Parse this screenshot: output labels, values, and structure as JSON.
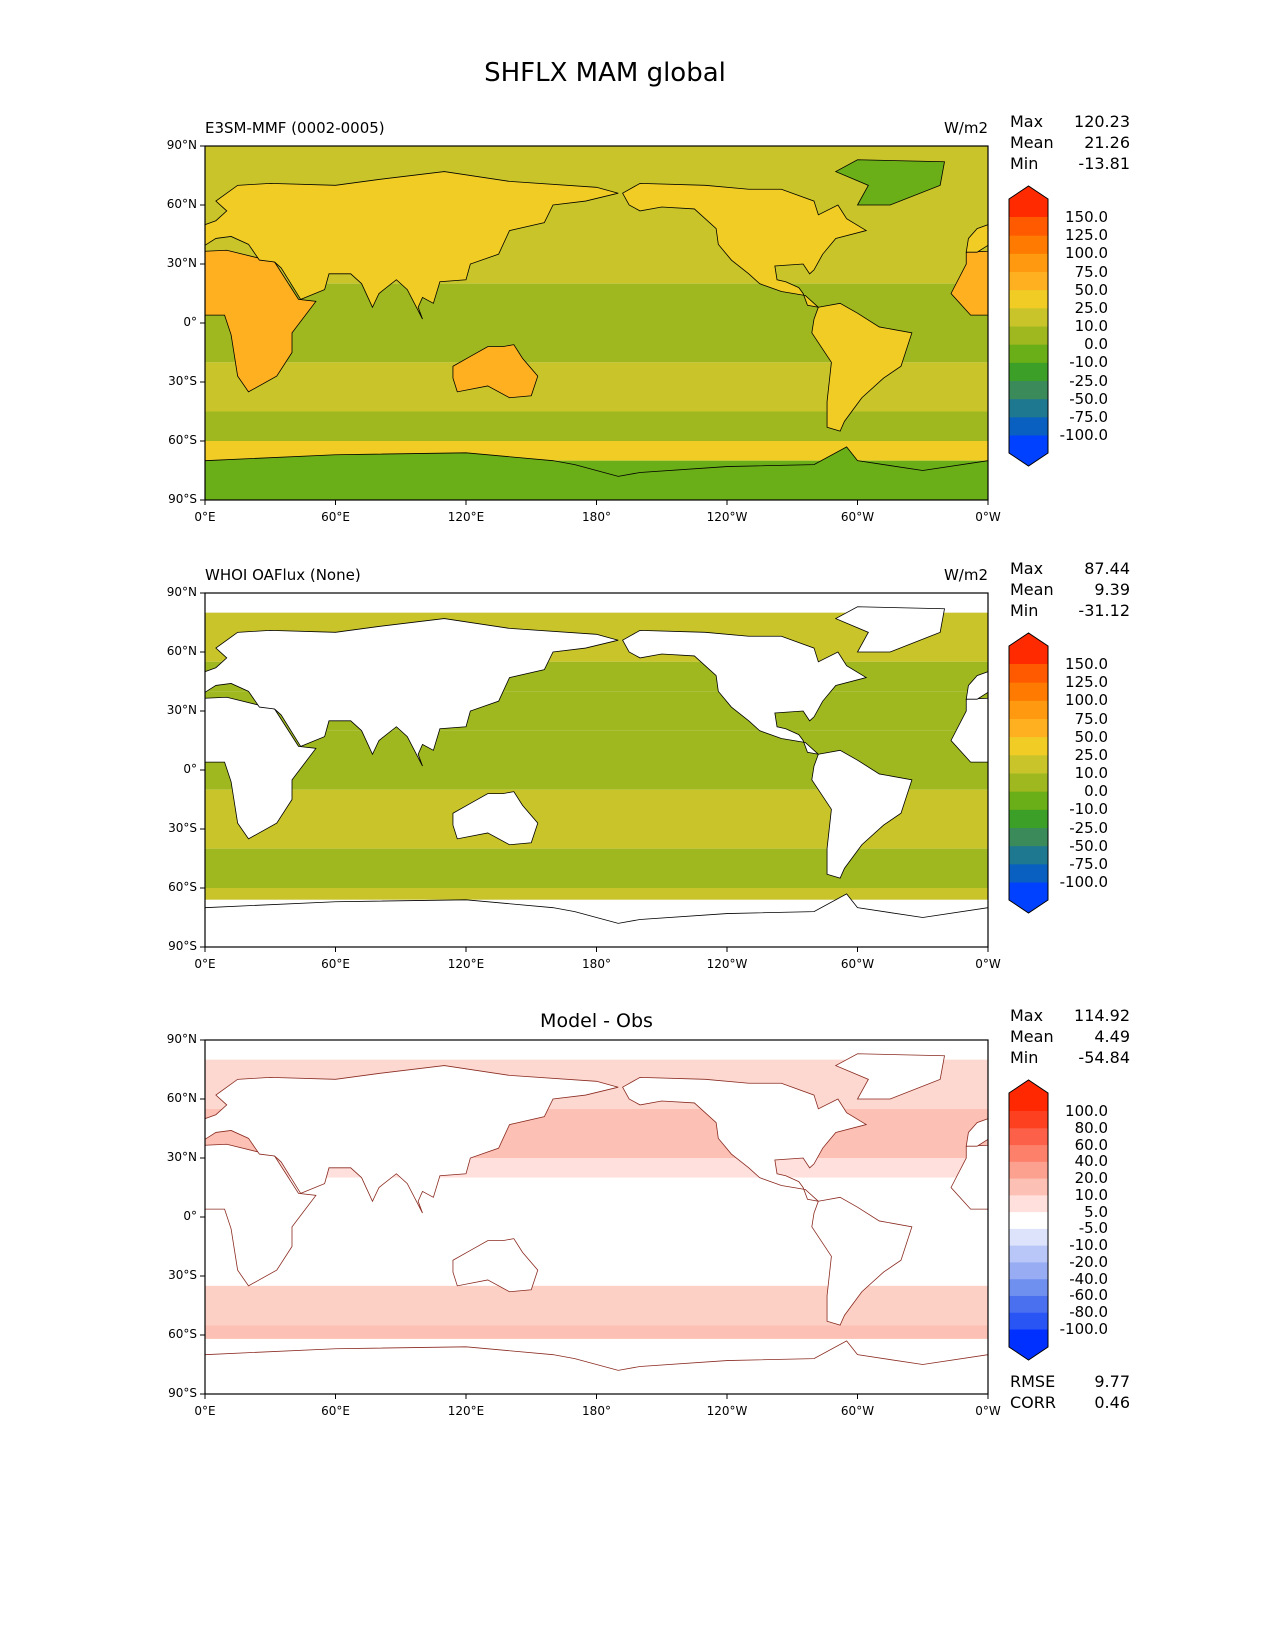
{
  "title": "SHFLX MAM global",
  "panels": [
    {
      "left_title": "E3SM-MMF (0002-0005)",
      "center_title": "",
      "units": "W/m2",
      "stats": [
        {
          "label": "Max",
          "value": "120.23"
        },
        {
          "label": "Mean",
          "value": "21.26"
        },
        {
          "label": "Min",
          "value": "-13.81"
        }
      ],
      "colorbar_levels": [
        "-100.0",
        "-75.0",
        "-50.0",
        "-25.0",
        "-10.0",
        "0.0",
        "10.0",
        "25.0",
        "50.0",
        "75.0",
        "100.0",
        "125.0",
        "150.0"
      ],
      "colorbar_colors": [
        "#0040ff",
        "#0a60c0",
        "#1e7890",
        "#3a8a5a",
        "#3ca028",
        "#6aae18",
        "#a0b820",
        "#c8c42a",
        "#f0cc25",
        "#ffb020",
        "#ff9a10",
        "#ff7a00",
        "#ff5a00",
        "#ff2a00"
      ]
    },
    {
      "left_title": "WHOI OAFlux (None)",
      "center_title": "",
      "units": "W/m2",
      "stats": [
        {
          "label": "Max",
          "value": "87.44"
        },
        {
          "label": "Mean",
          "value": "9.39"
        },
        {
          "label": "Min",
          "value": "-31.12"
        }
      ],
      "colorbar_levels": [
        "-100.0",
        "-75.0",
        "-50.0",
        "-25.0",
        "-10.0",
        "0.0",
        "10.0",
        "25.0",
        "50.0",
        "75.0",
        "100.0",
        "125.0",
        "150.0"
      ],
      "colorbar_colors": [
        "#0040ff",
        "#0a60c0",
        "#1e7890",
        "#3a8a5a",
        "#3ca028",
        "#6aae18",
        "#a0b820",
        "#c8c42a",
        "#f0cc25",
        "#ffb020",
        "#ff9a10",
        "#ff7a00",
        "#ff5a00",
        "#ff2a00"
      ]
    },
    {
      "left_title": "",
      "center_title": "Model - Obs",
      "units": "",
      "stats": [
        {
          "label": "Max",
          "value": "114.92"
        },
        {
          "label": "Mean",
          "value": "4.49"
        },
        {
          "label": "Min",
          "value": "-54.84"
        }
      ],
      "extra_stats": [
        {
          "label": "RMSE",
          "value": "9.77"
        },
        {
          "label": "CORR",
          "value": "0.46"
        }
      ],
      "colorbar_levels": [
        "-100.0",
        "-80.0",
        "-60.0",
        "-40.0",
        "-20.0",
        "-10.0",
        "-5.0",
        "5.0",
        "10.0",
        "20.0",
        "40.0",
        "60.0",
        "80.0",
        "100.0"
      ],
      "colorbar_colors": [
        "#0030ff",
        "#2a55f5",
        "#4a70f0",
        "#7090f0",
        "#98acf4",
        "#b8c6f8",
        "#dde3fb",
        "#ffffff",
        "#ffe0dc",
        "#fcc0b4",
        "#fca090",
        "#fc806a",
        "#fc6048",
        "#fc4020",
        "#ff2800"
      ]
    }
  ],
  "axes": {
    "yticks": [
      "90°N",
      "60°N",
      "30°N",
      "0°",
      "30°S",
      "60°S",
      "90°S"
    ],
    "xticks": [
      "0°E",
      "60°E",
      "120°E",
      "180°",
      "120°W",
      "60°W",
      "0°W"
    ]
  }
}
